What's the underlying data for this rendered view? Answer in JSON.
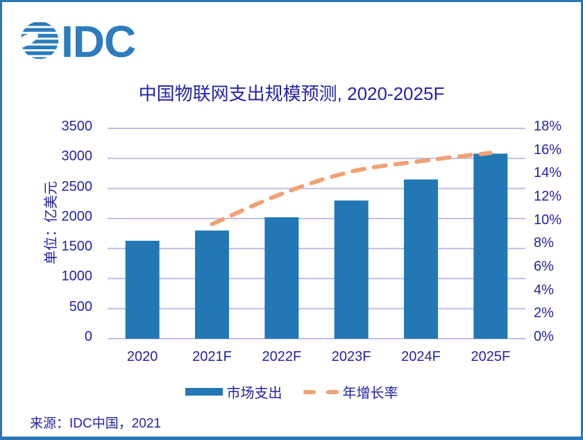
{
  "logo": {
    "letters": "IDC"
  },
  "chart_data": {
    "type": "bar",
    "subtype": "combo-bar-line",
    "title": "中国物联网支出规模预测, 2020-2025F",
    "categories": [
      "2020",
      "2021F",
      "2022F",
      "2023F",
      "2024F",
      "2025F"
    ],
    "series": [
      {
        "name": "市场支出",
        "type": "bar",
        "axis": "left",
        "values": [
          1630,
          1800,
          2020,
          2300,
          2650,
          3080
        ]
      },
      {
        "name": "年增长率",
        "type": "line",
        "axis": "right",
        "style": "dashed",
        "values": [
          null,
          9.8,
          12.4,
          14.3,
          15.2,
          15.9
        ],
        "unit": "%"
      }
    ],
    "left_axis": {
      "label": "单位：亿美元",
      "min": 0,
      "max": 3500,
      "step": 500,
      "ticks": [
        "0",
        "500",
        "1000",
        "1500",
        "2000",
        "2500",
        "3000",
        "3500"
      ]
    },
    "right_axis": {
      "min": 0,
      "max": 18,
      "step": 2,
      "ticks": [
        "0%",
        "2%",
        "4%",
        "6%",
        "8%",
        "10%",
        "12%",
        "14%",
        "16%",
        "18%"
      ]
    },
    "grid": "horizontal",
    "legend_position": "bottom"
  },
  "footer": {
    "source": "来源：IDC中国，2021"
  },
  "colors": {
    "bar": "#2278B5",
    "line": "#F1A173",
    "navy_text": "#2323A6",
    "gridline": "#BFBEE8",
    "border": "#2E75B6",
    "logo": "#2C7CBE"
  }
}
